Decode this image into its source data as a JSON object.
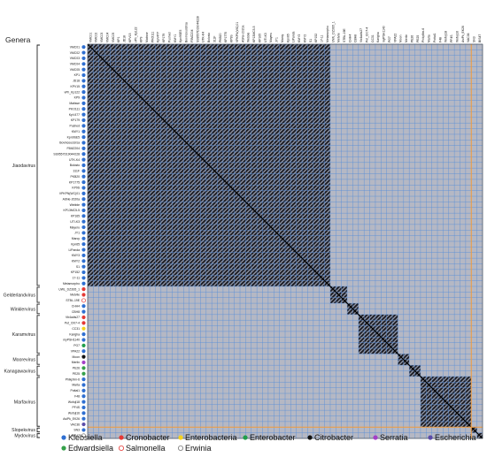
{
  "chart_data": {
    "type": "heatmap",
    "title": "",
    "genera_heading": "Genera",
    "labels": [
      "VMC01",
      "VMC02",
      "VMC03",
      "VMC04",
      "VMC05",
      "KP1",
      "JD18",
      "KPV15",
      "vPh_Kp122",
      "KP9",
      "Matisse",
      "PKO111",
      "KpV477",
      "KP179",
      "Pushed",
      "KMY1",
      "Kpn9SE5",
      "BovinceusUrsa",
      "F5MZ204",
      "SS9557D19044228",
      "UTK-K4",
      "Bolosto",
      "311F",
      "PKB20",
      "KP1775",
      "KP9S",
      "VPKPN(WC)01",
      "ASNe-2020a",
      "Webble",
      "KP13MC5-5",
      "KP165",
      "UTI-K3",
      "Mayeru",
      "JY1",
      "Marcy",
      "Kpn65",
      "LiPanda",
      "KMY3",
      "KMY2",
      "S1",
      "KP152",
      "17-11",
      "Metamorpho",
      "UWL_DZ3S5_1",
      "Metvile",
      "STBL-19E",
      "CHH4",
      "CBH8",
      "Vb4adis27",
      "Pet_CI07-4",
      "CC31",
      "Karigha",
      "myPSH1140",
      "PG7",
      "VPA22",
      "Moon",
      "Merlin",
      "PE26",
      "PE25",
      "Phikp9m-6",
      "Marta",
      "Pottal1",
      "F48",
      "Wofoji18",
      "PF4S",
      "Wofoji16",
      "AsiPk_EK26",
      "VAC36",
      "SN3",
      "BIS47"
    ],
    "hosts": [
      "Klebsiella",
      "Klebsiella",
      "Klebsiella",
      "Klebsiella",
      "Klebsiella",
      "Klebsiella",
      "Klebsiella",
      "Klebsiella",
      "Klebsiella",
      "Klebsiella",
      "Klebsiella",
      "Klebsiella",
      "Klebsiella",
      "Klebsiella",
      "Klebsiella",
      "Klebsiella",
      "Klebsiella",
      "Klebsiella",
      "Klebsiella",
      "Klebsiella",
      "Klebsiella",
      "Klebsiella",
      "Klebsiella",
      "Klebsiella",
      "Klebsiella",
      "Klebsiella",
      "Klebsiella",
      "Klebsiella",
      "Klebsiella",
      "Klebsiella",
      "Klebsiella",
      "Klebsiella",
      "Klebsiella",
      "Klebsiella",
      "Klebsiella",
      "Klebsiella",
      "Klebsiella",
      "Klebsiella",
      "Klebsiella",
      "Klebsiella",
      "Klebsiella",
      "Klebsiella",
      "Klebsiella",
      "Cronobacter",
      "Cronobacter",
      "Salmonella",
      "Klebsiella",
      "Klebsiella",
      "Cronobacter",
      "Cronobacter",
      "Enterobacteria",
      "Klebsiella",
      "Klebsiella",
      "Enterobacter",
      "Klebsiella",
      "Citrobacter",
      "Serratia",
      "Edwardsiella",
      "Edwardsiella",
      "Klebsiella",
      "Klebsiella",
      "Klebsiella",
      "Klebsiella",
      "Klebsiella",
      "Klebsiella",
      "Klebsiella",
      "Klebsiella",
      "Escherichia",
      "Klebsiella",
      "Erwinia"
    ],
    "genera": [
      {
        "name": "Jiaodavirus",
        "start": 0,
        "end": 42
      },
      {
        "name": "Gelderlandvirus",
        "start": 43,
        "end": 45
      },
      {
        "name": "Winklervirus",
        "start": 46,
        "end": 47
      },
      {
        "name": "Karamvirus",
        "start": 48,
        "end": 54
      },
      {
        "name": "Mooreviru​s",
        "start": 55,
        "end": 56
      },
      {
        "name": "Kanagawavirus",
        "start": 57,
        "end": 58
      },
      {
        "name": "Marfavirus",
        "start": 59,
        "end": 67
      },
      {
        "name": "Slopekvirus",
        "start": 68,
        "end": 68
      },
      {
        "name": "Mydovirus",
        "start": 69,
        "end": 69
      }
    ],
    "high_similarity_blocks": [
      [
        0,
        42
      ],
      [
        43,
        45
      ],
      [
        46,
        47
      ],
      [
        48,
        54
      ],
      [
        55,
        56
      ],
      [
        57,
        58
      ],
      [
        59,
        67
      ],
      [
        68,
        68
      ],
      [
        69,
        69
      ]
    ],
    "legend": [
      {
        "label": "Klebsiella",
        "color": "#2f6fd1",
        "hollow": false
      },
      {
        "label": "Cronobacter",
        "color": "#e53935",
        "hollow": false
      },
      {
        "label": "Enterobacteria",
        "color": "#f5d21c",
        "hollow": false
      },
      {
        "label": "Enterobacter",
        "color": "#1f9e4a",
        "hollow": false
      },
      {
        "label": "Citrobacter",
        "color": "#111111",
        "hollow": false
      },
      {
        "label": "Serratia",
        "color": "#a43fc7",
        "hollow": false
      },
      {
        "label": "Escherichia",
        "color": "#5b4ca8",
        "hollow": false
      },
      {
        "label": "Edwardsiella",
        "color": "#35a14a",
        "hollow": false
      },
      {
        "label": "Salmonella",
        "color": "#e53935",
        "hollow": true
      },
      {
        "label": "Erwinia",
        "color": "#777777",
        "hollow": true
      }
    ],
    "colors": {
      "background_cell": "#b5b8c4",
      "gridline": "#5a8fd8",
      "high_cell": "#1b1b22",
      "separator": "#f29b3a"
    }
  }
}
